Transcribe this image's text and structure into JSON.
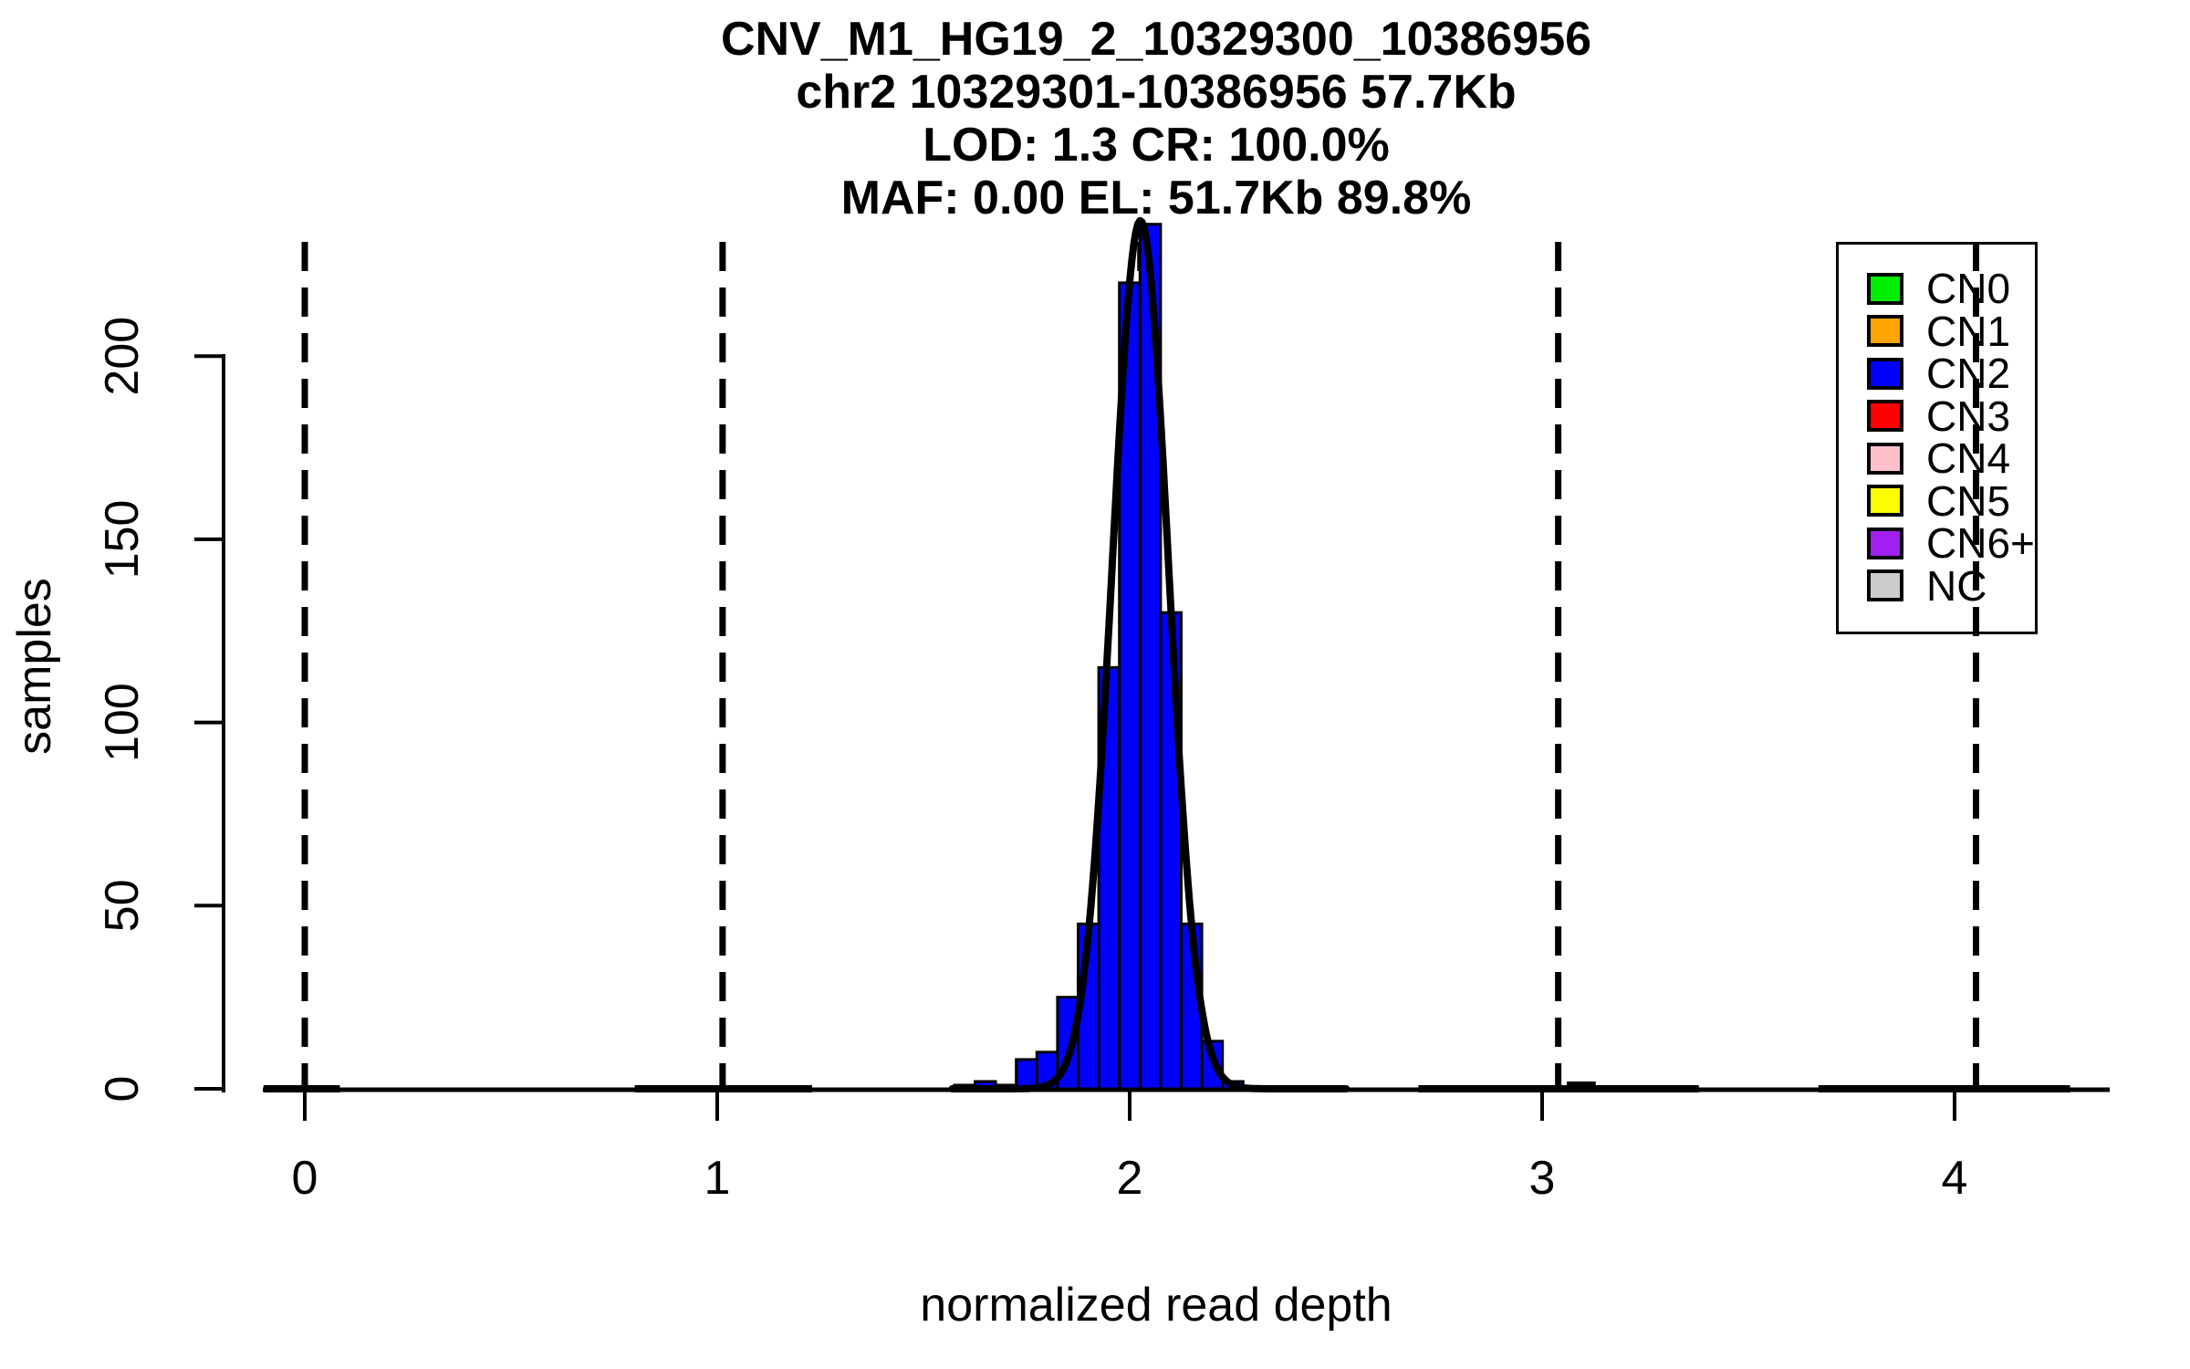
{
  "header": {
    "title_lines": [
      "CNV_M1_HG19_2_10329300_10386956",
      "chr2 10329301-10386956 57.7Kb",
      "LOD: 1.3 CR: 100.0%",
      "MAF: 0.00 EL: 51.7Kb 89.8%"
    ]
  },
  "chart_data": {
    "type": "bar",
    "subtype": "histogram-with-density-curve",
    "title": "CNV_M1_HG19_2_10329300_10386956 / chr2 10329301-10386956 57.7Kb / LOD: 1.3 CR: 100.0% / MAF: 0.00 EL: 51.7Kb 89.8%",
    "xlabel": "normalized read depth",
    "ylabel": "samples",
    "x_ticks": [
      0,
      1,
      2,
      3,
      4
    ],
    "y_ticks": [
      0,
      50,
      100,
      150,
      200
    ],
    "xlim": [
      -0.2,
      4.38
    ],
    "ylim": [
      0,
      240
    ],
    "grid": false,
    "legend_position": "top-right",
    "bin_start": 1.575,
    "bin_width": 0.05,
    "counts": [
      1,
      2,
      1,
      8,
      10,
      25,
      45,
      115,
      220,
      236,
      130,
      45,
      13,
      2
    ],
    "bar_color": "#0000FF",
    "bar_border_color": "#000000",
    "density_curve": {
      "mean": 2.026,
      "sd": 0.068,
      "peak": 237,
      "color": "#000000"
    },
    "dashed_vlines": [
      0,
      1.013,
      2.026,
      3.039,
      4.052
    ],
    "baseline_bumps": [
      {
        "x0": -0.1,
        "x1": 0.085,
        "h": 1
      },
      {
        "x0": 0.8,
        "x1": 1.23,
        "h": 1
      },
      {
        "x0": 2.7,
        "x1": 3.38,
        "h": 1
      },
      {
        "x0": 3.06,
        "x1": 3.13,
        "h": 2
      },
      {
        "x0": 3.67,
        "x1": 4.28,
        "h": 1
      }
    ]
  },
  "legend": {
    "items": [
      {
        "label": "CN0",
        "color": "#00EE00"
      },
      {
        "label": "CN1",
        "color": "#FFA500"
      },
      {
        "label": "CN2",
        "color": "#0000FF"
      },
      {
        "label": "CN3",
        "color": "#FF0000"
      },
      {
        "label": "CN4",
        "color": "#FFC0CB"
      },
      {
        "label": "CN5",
        "color": "#FFFF00"
      },
      {
        "label": "CN6+",
        "color": "#A020F0"
      },
      {
        "label": "NC",
        "color": "#CCCCCC"
      }
    ]
  }
}
